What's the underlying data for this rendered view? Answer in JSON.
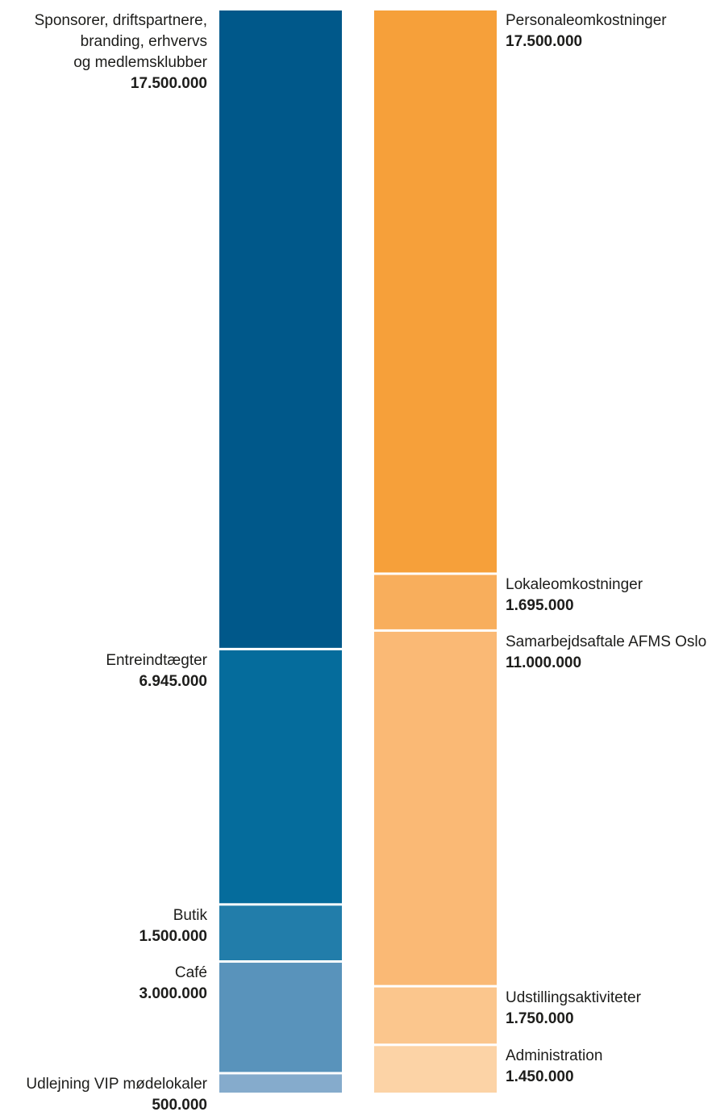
{
  "chart_data": {
    "type": "bar",
    "stacked": true,
    "title": "",
    "xlabel": "",
    "ylabel": "",
    "series": [
      {
        "name": "",
        "segments": [
          {
            "label_lines": [
              "Sponsorer, driftspartnere,",
              "branding, erhvervs",
              "og medlemsklubber"
            ],
            "value": 17500000,
            "value_label": "17.500.000",
            "color": "#00588a"
          },
          {
            "label_lines": [
              "Entreindtægter"
            ],
            "value": 6945000,
            "value_label": "6.945.000",
            "color": "#056c9c"
          },
          {
            "label_lines": [
              "Butik"
            ],
            "value": 1500000,
            "value_label": "1.500.000",
            "color": "#227daa"
          },
          {
            "label_lines": [
              "Café"
            ],
            "value": 3000000,
            "value_label": "3.000.000",
            "color": "#5993bb"
          },
          {
            "label_lines": [
              "Udlejning VIP mødelokaler"
            ],
            "value": 500000,
            "value_label": "500.000",
            "color": "#85abcc"
          }
        ]
      },
      {
        "name": "",
        "segments": [
          {
            "label_lines": [
              "Personaleomkostninger"
            ],
            "value": 17500000,
            "value_label": "17.500.000",
            "color": "#f6a03a"
          },
          {
            "label_lines": [
              "Lokaleomkostninger"
            ],
            "value": 1695000,
            "value_label": "1.695.000",
            "color": "#f8ae5c"
          },
          {
            "label_lines": [
              "Samarbejdsaftale AFMS Oslo"
            ],
            "value": 11000000,
            "value_label": "11.000.000",
            "color": "#fab975"
          },
          {
            "label_lines": [
              "Udstillingsaktiviteter"
            ],
            "value": 1750000,
            "value_label": "1.750.000",
            "color": "#fbc68d"
          },
          {
            "label_lines": [
              "Administration"
            ],
            "value": 1450000,
            "value_label": "1.450.000",
            "color": "#fcd3a6"
          }
        ]
      }
    ]
  }
}
